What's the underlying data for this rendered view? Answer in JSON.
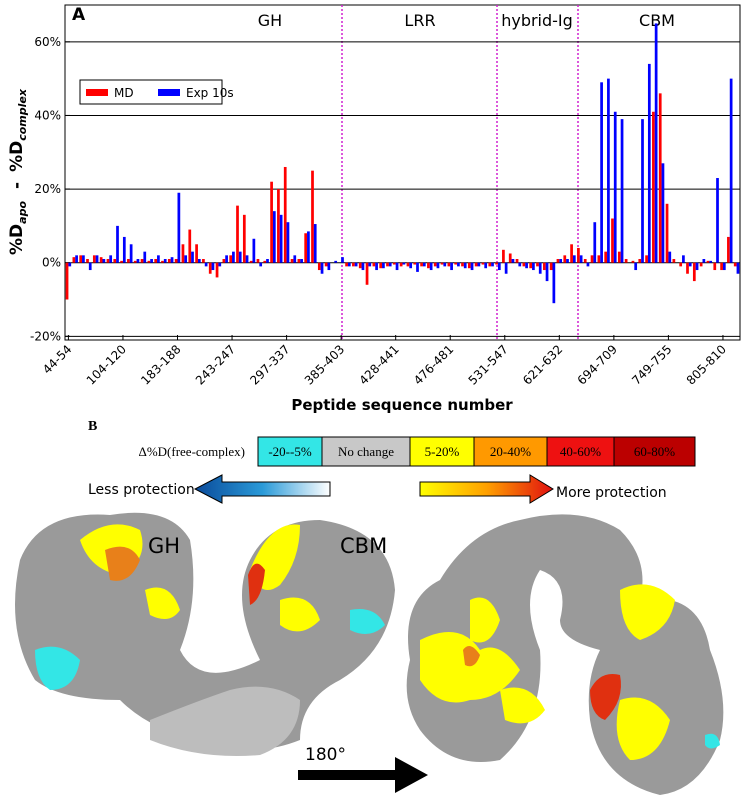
{
  "chart_data": {
    "type": "bar",
    "panel_label": "A",
    "ylabel": [
      "%D",
      "apo",
      "-",
      "%D",
      "complex"
    ],
    "xlabel": "Peptide sequence number",
    "regions": [
      "GH",
      "LRR",
      "hybrid-Ig",
      "CBM"
    ],
    "categories": [
      "44-54",
      null,
      null,
      null,
      null,
      null,
      null,
      null,
      "104-120",
      null,
      null,
      null,
      null,
      null,
      null,
      null,
      "183-188",
      null,
      null,
      null,
      null,
      null,
      null,
      null,
      "243-247",
      null,
      null,
      null,
      null,
      null,
      null,
      null,
      "297-337",
      null,
      null,
      null,
      null,
      null,
      null,
      null,
      "385-403",
      null,
      null,
      null,
      null,
      null,
      null,
      null,
      "428-441",
      null,
      null,
      null,
      null,
      null,
      null,
      null,
      "476-481",
      null,
      null,
      null,
      null,
      null,
      null,
      null,
      "531-547",
      null,
      null,
      null,
      null,
      null,
      null,
      null,
      "621-632",
      null,
      null,
      null,
      null,
      null,
      null,
      null,
      "694-709",
      null,
      null,
      null,
      null,
      null,
      null,
      null,
      "749-755",
      null,
      null,
      null,
      null,
      null,
      null,
      null,
      "805-810",
      null,
      null
    ],
    "series": [
      {
        "name": "MD",
        "color": "#ff0000",
        "values": [
          -10,
          1.5,
          2,
          1,
          2,
          1.5,
          1,
          1,
          0.5,
          1,
          0.5,
          1,
          0.5,
          1,
          0.5,
          1,
          1,
          5,
          9,
          5,
          1,
          -3,
          -4,
          1,
          2,
          15.5,
          13,
          0.5,
          1,
          0.5,
          22,
          20,
          26,
          1,
          1,
          8,
          25,
          -2,
          -1,
          0,
          0,
          -1,
          -1,
          -1.5,
          -6,
          -1,
          -1.5,
          -1,
          -0.5,
          -1,
          -1,
          -0.5,
          -1,
          -1.5,
          -1,
          -0.5,
          -1,
          -0.5,
          -1,
          -1.5,
          -1,
          -0.5,
          -1,
          -0.5,
          3.5,
          2.5,
          1,
          -1,
          -1.5,
          -1,
          -2,
          -2,
          1,
          2,
          5,
          4,
          1,
          2,
          2,
          3,
          12,
          3,
          1,
          0.5,
          1,
          2,
          41,
          46,
          16,
          1,
          -1,
          -3,
          -5,
          -1,
          0.5,
          -2,
          -2,
          7,
          -1
        ]
      },
      {
        "name": "Exp 10s",
        "color": "#0000ff",
        "values": [
          -1,
          2,
          2,
          -2,
          2,
          1,
          2,
          10,
          7,
          5,
          1,
          3,
          1,
          2,
          1,
          1.5,
          19,
          2,
          3,
          1,
          -1,
          -2,
          -1,
          2,
          3,
          3,
          2,
          6.5,
          -1,
          1,
          14,
          13,
          11,
          2,
          1,
          8.5,
          10.5,
          -3,
          -2,
          0.5,
          1.5,
          -1,
          -1,
          -2,
          -1,
          -2,
          -1.5,
          -1,
          -2,
          -0.5,
          -1.5,
          -2.5,
          -1,
          -2,
          -1.5,
          -1,
          -2,
          -1,
          -1.5,
          -2,
          -1,
          -1.5,
          -1,
          -2,
          -3,
          1,
          -1,
          -1.5,
          -2,
          -3,
          -5,
          -11,
          1,
          1,
          2,
          2,
          -1,
          11,
          49,
          50,
          41,
          39,
          0,
          -2,
          39,
          54,
          65,
          27,
          3,
          0,
          2,
          -1,
          -2,
          1,
          0.5,
          23,
          -2,
          50,
          -3
        ]
      }
    ],
    "ylim": [
      -21,
      70
    ],
    "yticks": [
      {
        "value": -20,
        "label": "-20%"
      },
      {
        "value": 0,
        "label": "0%"
      },
      {
        "value": 20,
        "label": "20%"
      },
      {
        "value": 40,
        "label": "40%"
      },
      {
        "value": 60,
        "label": "60%"
      }
    ],
    "grid": true,
    "legend": "upper left"
  },
  "panel_b": {
    "label": "B",
    "scale_title": "Δ%D(free-complex)",
    "scale": [
      {
        "label": "-20--5%",
        "color": "#33e6e6"
      },
      {
        "label": "No change",
        "color": "#c8c8c8"
      },
      {
        "label": "5-20%",
        "color": "#ffff00"
      },
      {
        "label": "20-40%",
        "color": "#ff9900"
      },
      {
        "label": "40-60%",
        "color": "#ee1111"
      },
      {
        "label": "60-80%",
        "color": "#bb0000"
      }
    ],
    "less_protection": "Less protection",
    "more_protection": "More protection",
    "structure_labels": [
      "GH",
      "CBM"
    ],
    "rotation": "180°"
  }
}
